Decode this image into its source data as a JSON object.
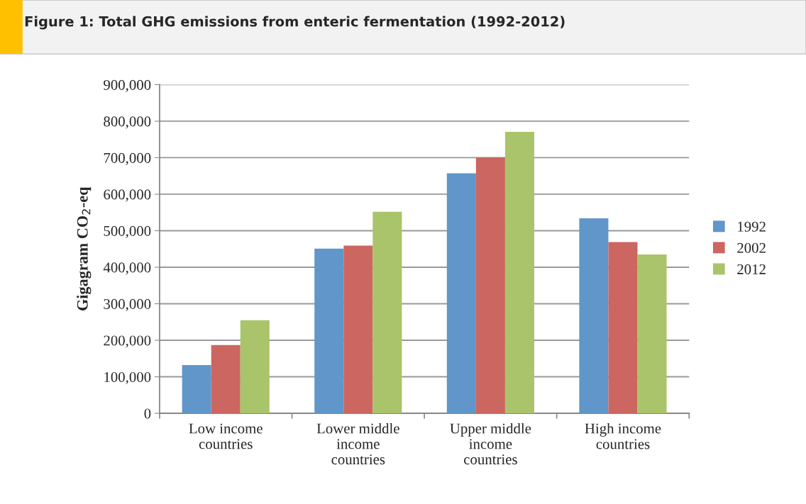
{
  "chart_data": {
    "type": "bar",
    "title": "Figure 1: Total GHG emissions from enteric fermentation (1992-2012)",
    "ylabel": "Gigagram CO$_{2}$-eq",
    "categories": [
      "Low income\ncountries",
      "Lower middle\nincome\ncountries",
      "Upper middle\nincome\ncountries",
      "High income\ncountries"
    ],
    "series": [
      {
        "name": "1992",
        "color": "#6096c9",
        "values": [
          132000,
          451000,
          657000,
          534000
        ]
      },
      {
        "name": "2002",
        "color": "#cc6660",
        "values": [
          187000,
          459000,
          701000,
          469000
        ]
      },
      {
        "name": "2012",
        "color": "#a9c46a",
        "values": [
          255000,
          552000,
          771000,
          435000
        ]
      }
    ],
    "ylim": [
      0,
      900000
    ],
    "yticks": [
      {
        "value": 0,
        "label": "0"
      },
      {
        "value": 100000,
        "label": "100,000"
      },
      {
        "value": 200000,
        "label": "200,000"
      },
      {
        "value": 300000,
        "label": "300,000"
      },
      {
        "value": 400000,
        "label": "400,000"
      },
      {
        "value": 500000,
        "label": "500,000"
      },
      {
        "value": 600000,
        "label": "600,000"
      },
      {
        "value": 700000,
        "label": "700,000"
      },
      {
        "value": 800000,
        "label": "800,000"
      },
      {
        "value": 900000,
        "label": "900,000"
      }
    ],
    "grid": "y",
    "legend": "right"
  }
}
